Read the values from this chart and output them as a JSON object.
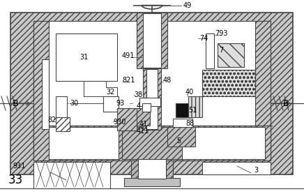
{
  "bg_color": "#ffffff",
  "lc": "#444444",
  "figsize": [
    4.36,
    2.78
  ],
  "dpi": 100
}
